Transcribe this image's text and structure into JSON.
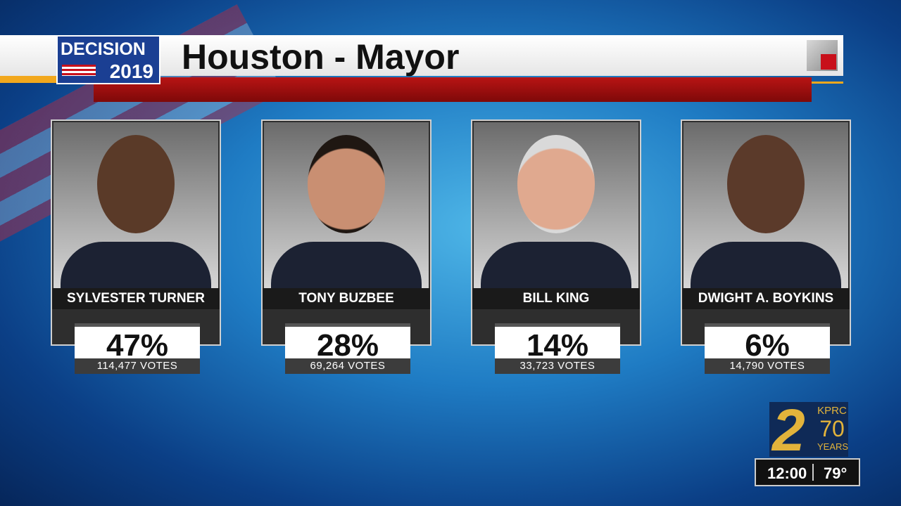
{
  "header": {
    "badge": {
      "word": "DECISION",
      "year": "2019"
    },
    "title": "Houston - Mayor"
  },
  "candidates": [
    {
      "name": "SYLVESTER TURNER",
      "percent": "47%",
      "votes": "114,477 VOTES"
    },
    {
      "name": "TONY BUZBEE",
      "percent": "28%",
      "votes": "69,264 VOTES"
    },
    {
      "name": "BILL KING",
      "percent": "14%",
      "votes": "33,723 VOTES"
    },
    {
      "name": "DWIGHT A. BOYKINS",
      "percent": "6%",
      "votes": "14,790 VOTES"
    }
  ],
  "footer": {
    "logo": {
      "channel": "2",
      "call_sign": "KPRC",
      "anniversary": "70",
      "years": "YEARS"
    },
    "time": "12:00",
    "temperature": "79°"
  }
}
